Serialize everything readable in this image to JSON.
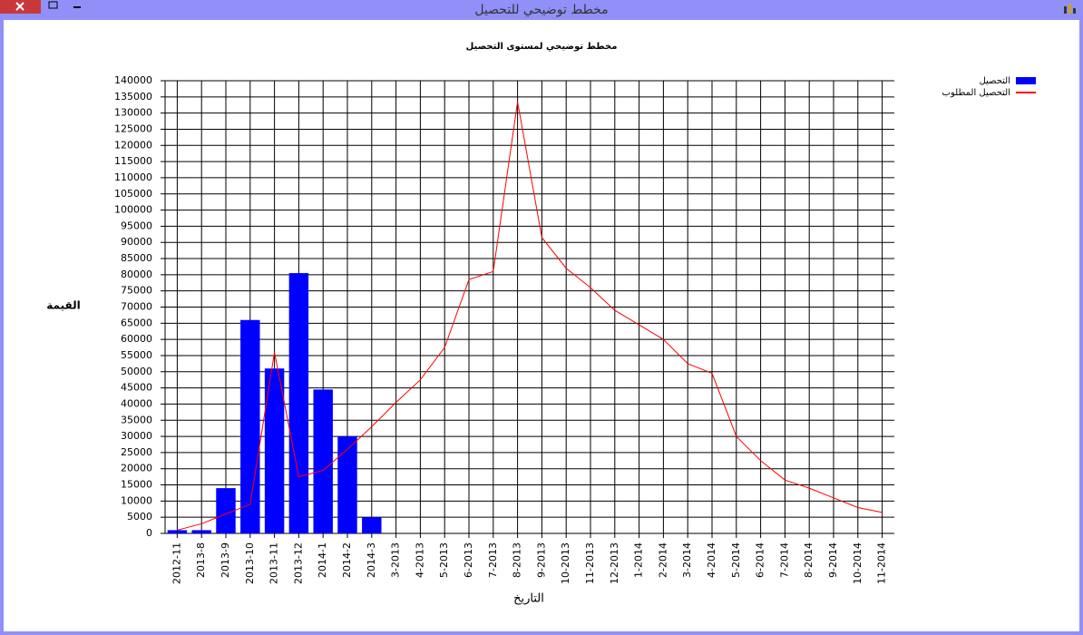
{
  "window": {
    "title": "مخطط توضيحي للتحصيل"
  },
  "chart_data": {
    "type": "bar",
    "title": "مخطط توضيحي لمستوى التحصيل",
    "x_label": "التاريخ",
    "y_label": "القيمة",
    "categories": [
      "2012-11",
      "2013-8",
      "2013-9",
      "2013-10",
      "2013-11",
      "2013-12",
      "2014-1",
      "2014-2",
      "2014-3",
      "3-2013",
      "4-2013",
      "5-2013",
      "6-2013",
      "7-2013",
      "8-2013",
      "9-2013",
      "10-2013",
      "11-2013",
      "12-2013",
      "1-2014",
      "2-2014",
      "3-2014",
      "4-2014",
      "5-2014",
      "6-2014",
      "7-2014",
      "8-2014",
      "9-2014",
      "10-2014",
      "11-2014"
    ],
    "series": [
      {
        "name": "التحصيل",
        "type": "bar",
        "color": "#0000ff",
        "values": [
          1000,
          1000,
          14000,
          66000,
          51000,
          80500,
          44500,
          30000,
          5000,
          null,
          null,
          null,
          null,
          null,
          null,
          null,
          null,
          null,
          null,
          null,
          null,
          null,
          null,
          null,
          null,
          null,
          null,
          null,
          null,
          null
        ]
      },
      {
        "name": "التحصيل المطلوب",
        "type": "line",
        "color": "#ff0000",
        "values": [
          1000,
          3000,
          6000,
          9000,
          56000,
          17500,
          19500,
          26000,
          33000,
          40500,
          47500,
          57500,
          78500,
          81000,
          133500,
          91500,
          82000,
          76000,
          69000,
          64500,
          60000,
          52500,
          49500,
          30000,
          22500,
          16500,
          14000,
          11000,
          8000,
          6500
        ]
      }
    ],
    "ylim": [
      0,
      140000
    ],
    "yticks": [
      0,
      5000,
      10000,
      15000,
      20000,
      25000,
      30000,
      35000,
      40000,
      45000,
      50000,
      55000,
      60000,
      65000,
      70000,
      75000,
      80000,
      85000,
      90000,
      95000,
      100000,
      105000,
      110000,
      115000,
      120000,
      125000,
      130000,
      135000,
      140000
    ],
    "grid": true,
    "legend": "top-right"
  }
}
